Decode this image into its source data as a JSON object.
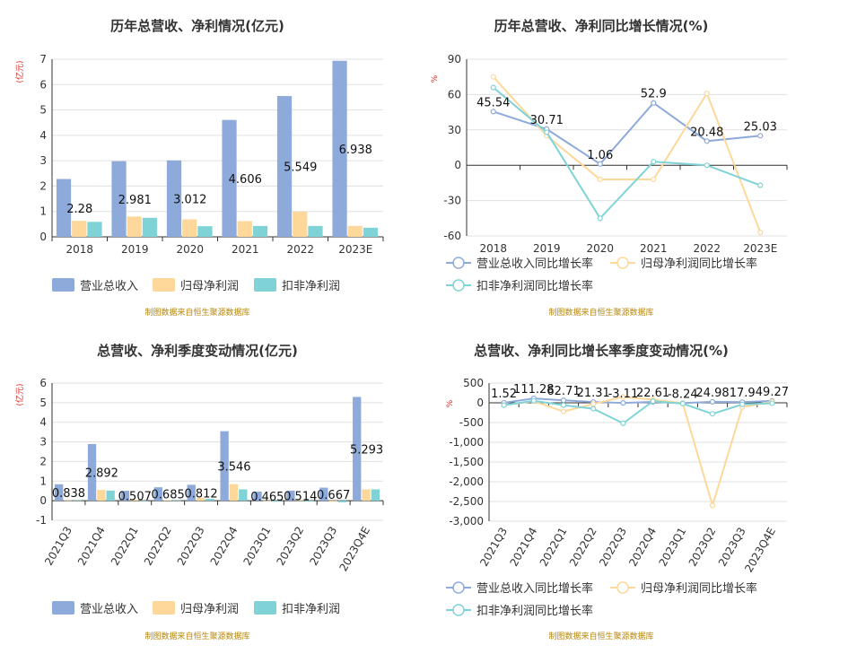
{
  "colors": {
    "revenue": "#8eaadb",
    "net_profit": "#fdd89a",
    "deducted_profit": "#7fd3d6"
  },
  "source_note": "制图数据来自恒生聚源数据库",
  "chart_data": [
    {
      "type": "bar",
      "title": "历年总营收、净利情况(亿元)",
      "unit": "(亿元)",
      "categories": [
        "2018",
        "2019",
        "2020",
        "2021",
        "2022",
        "2023E"
      ],
      "ylim": [
        0,
        7
      ],
      "yticks": [
        0,
        1,
        2,
        3,
        4,
        5,
        6,
        7
      ],
      "series": [
        {
          "name": "营业总收入",
          "color": "#8eaadb",
          "values": [
            2.28,
            2.981,
            3.012,
            4.606,
            5.549,
            6.938
          ]
        },
        {
          "name": "归母净利润",
          "color": "#fdd89a",
          "values": [
            0.63,
            0.8,
            0.69,
            0.62,
            0.99,
            0.43
          ]
        },
        {
          "name": "扣非净利润",
          "color": "#7fd3d6",
          "values": [
            0.59,
            0.75,
            0.42,
            0.43,
            0.43,
            0.36
          ]
        }
      ],
      "data_labels": [
        "2.28",
        "2.981",
        "3.012",
        "4.606",
        "5.549",
        "6.938"
      ],
      "legend": "bottom",
      "grid": true
    },
    {
      "type": "line",
      "title": "历年总营收、净利同比增长情况(%)",
      "unit": "%",
      "categories": [
        "2018",
        "2019",
        "2020",
        "2021",
        "2022",
        "2023E"
      ],
      "ylim": [
        -60,
        90
      ],
      "yticks": [
        -60,
        -30,
        0,
        30,
        60,
        90
      ],
      "series": [
        {
          "name": "营业总收入同比增长率",
          "color": "#8eaadb",
          "values": [
            45.54,
            30.71,
            1.06,
            52.9,
            20.48,
            25.03
          ]
        },
        {
          "name": "归母净利润同比增长率",
          "color": "#fdd89a",
          "values": [
            75,
            25,
            -12,
            -12,
            61,
            -57
          ]
        },
        {
          "name": "扣非净利润同比增长率",
          "color": "#7fd3d6",
          "values": [
            66,
            28,
            -45,
            3,
            0,
            -17
          ]
        }
      ],
      "data_labels": [
        "45.54",
        "30.71",
        "1.06",
        "52.9",
        "20.48",
        "25.03"
      ],
      "legend": "bottom",
      "grid": true
    },
    {
      "type": "bar",
      "title": "总营收、净利季度变动情况(亿元)",
      "unit": "(亿元)",
      "categories": [
        "2021Q3",
        "2021Q4",
        "2022Q1",
        "2022Q2",
        "2022Q3",
        "2022Q4",
        "2023Q1",
        "2023Q2",
        "2023Q3",
        "2023Q4E"
      ],
      "ylim": [
        -1,
        6
      ],
      "yticks": [
        -1,
        0,
        1,
        2,
        3,
        4,
        5,
        6
      ],
      "series": [
        {
          "name": "营业总收入",
          "color": "#8eaadb",
          "values": [
            0.838,
            2.892,
            0.507,
            0.685,
            0.812,
            3.546,
            0.465,
            0.514,
            0.667,
            5.293
          ]
        },
        {
          "name": "归母净利润",
          "color": "#fdd89a",
          "values": [
            0.02,
            0.55,
            0.05,
            0.03,
            0.15,
            0.85,
            -0.02,
            0.02,
            -0.05,
            0.58
          ]
        },
        {
          "name": "扣非净利润",
          "color": "#7fd3d6",
          "values": [
            0.02,
            0.52,
            -0.03,
            0.02,
            0.1,
            0.58,
            -0.05,
            -0.04,
            -0.08,
            0.58
          ]
        }
      ],
      "data_labels": [
        "0.838",
        "2.892",
        "0.507",
        "0.685",
        "0.812",
        "3.546",
        "0.465",
        "0.514",
        "0.667",
        "5.293"
      ],
      "legend": "bottom",
      "grid": true
    },
    {
      "type": "line",
      "title": "总营收、净利同比增长率季度变动情况(%)",
      "unit": "%",
      "categories": [
        "2021Q3",
        "2021Q4",
        "2022Q1",
        "2022Q2",
        "2022Q3",
        "2022Q4",
        "2023Q1",
        "2023Q2",
        "2023Q3",
        "2023Q4E"
      ],
      "ylim": [
        -3000,
        500
      ],
      "yticks": [
        -3000,
        -2500,
        -2000,
        -1500,
        -1000,
        -500,
        0,
        500
      ],
      "series": [
        {
          "name": "营业总收入同比增长率",
          "color": "#8eaadb",
          "values": [
            1.52,
            111.28,
            62.71,
            21.31,
            -3.11,
            22.61,
            -8.24,
            24.98,
            17.9,
            49.27
          ]
        },
        {
          "name": "归母净利润同比增长率",
          "color": "#fdd89a",
          "values": [
            -60,
            40,
            -220,
            -30,
            150,
            80,
            -10,
            -2600,
            -110,
            30
          ]
        },
        {
          "name": "扣非净利润同比增长率",
          "color": "#7fd3d6",
          "values": [
            -60,
            50,
            -60,
            -150,
            -520,
            40,
            -20,
            -280,
            -40,
            -10
          ]
        }
      ],
      "data_labels": [
        "1.52",
        "111.28",
        "62.71",
        "21.31",
        "-3.11",
        "22.61",
        "-8.24",
        "24.98",
        "17.9",
        "49.27"
      ],
      "legend": "bottom",
      "grid": true
    }
  ]
}
